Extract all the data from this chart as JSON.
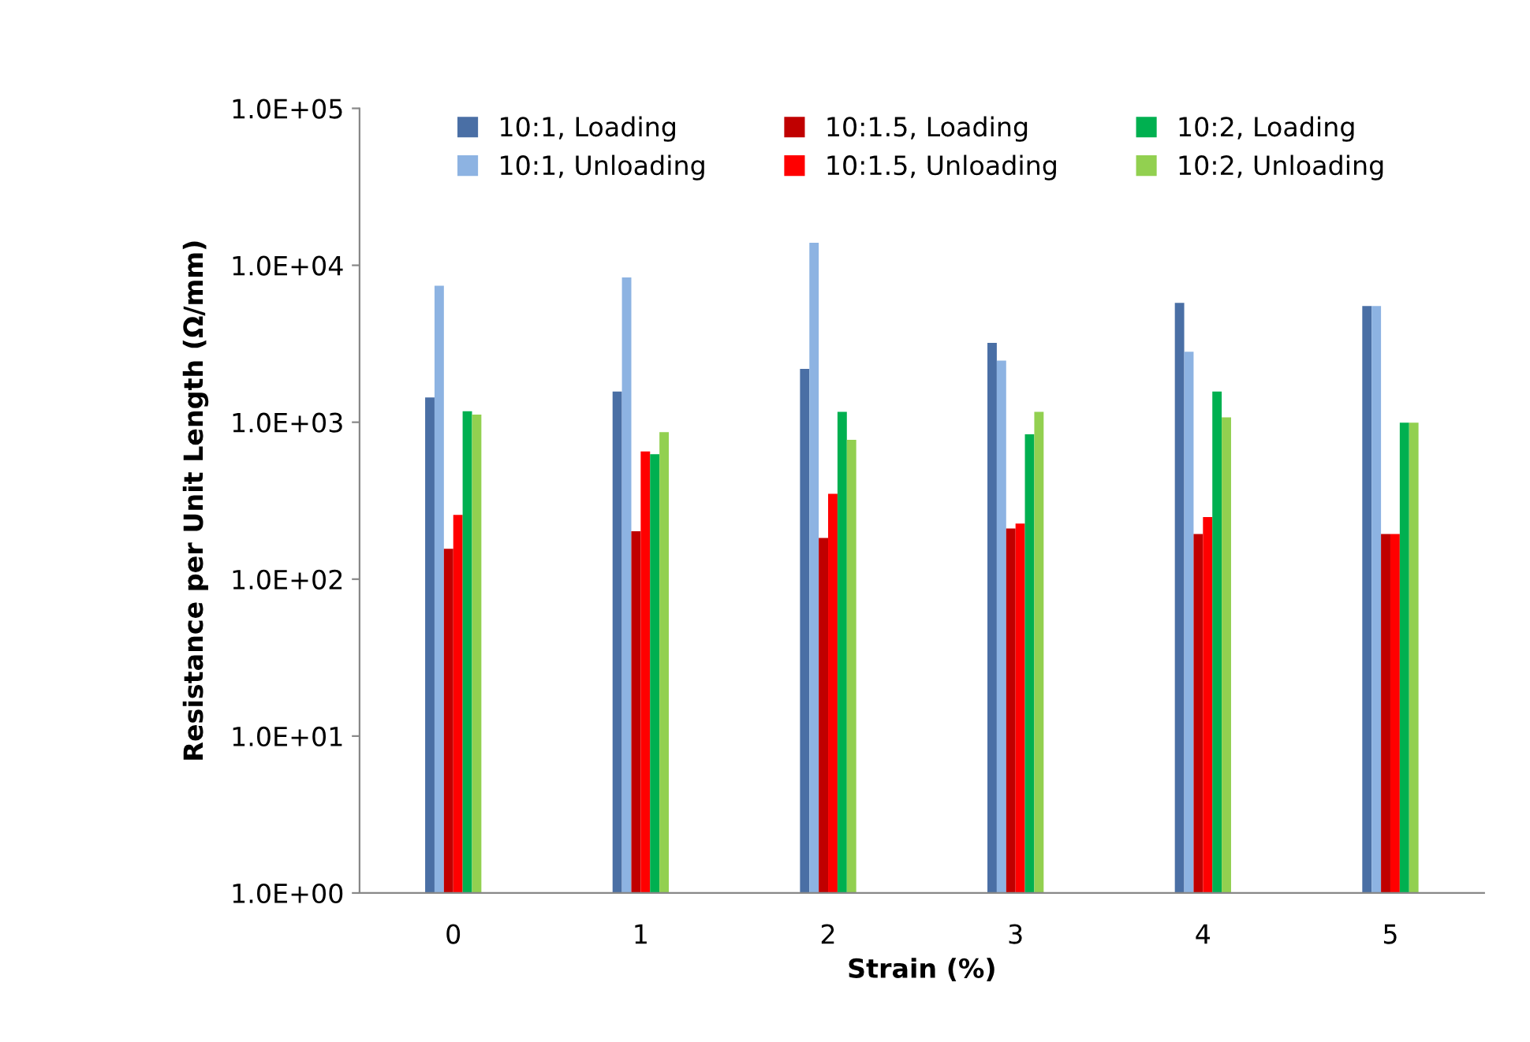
{
  "chart_data": {
    "type": "bar",
    "xlabel": "Strain (%)",
    "ylabel": "Resistance per Unit Length (Ω/mm)",
    "categories": [
      "0",
      "1",
      "2",
      "3",
      "4",
      "5"
    ],
    "series": [
      {
        "name": "10:1, Loading",
        "color": "#4a6fa5",
        "values": [
          1440,
          1570,
          2190,
          3200,
          5770,
          5500
        ]
      },
      {
        "name": "10:1, Unloading",
        "color": "#8db3e2",
        "values": [
          7400,
          8370,
          13900,
          2470,
          2810,
          5500
        ]
      },
      {
        "name": "10:1.5, Loading",
        "color": "#c00000",
        "values": [
          156,
          202,
          183,
          210,
          194,
          194
        ]
      },
      {
        "name": "10:1.5, Unloading",
        "color": "#ff0000",
        "values": [
          257,
          652,
          350,
          226,
          249,
          194
        ]
      },
      {
        "name": "10:2, Loading",
        "color": "#00b050",
        "values": [
          1175,
          626,
          1166,
          837,
          1570,
          993
        ]
      },
      {
        "name": "10:2, Unloading",
        "color": "#92d050",
        "values": [
          1120,
          865,
          772,
          1166,
          1075,
          993
        ]
      }
    ],
    "log": "y",
    "ylim": [
      1,
      100000
    ],
    "yticks": [
      {
        "value": 1,
        "label": "1.0E+00"
      },
      {
        "value": 10,
        "label": "1.0E+01"
      },
      {
        "value": 100,
        "label": "1.0E+02"
      },
      {
        "value": 1000,
        "label": "1.0E+03"
      },
      {
        "value": 10000,
        "label": "1.0E+04"
      },
      {
        "value": 100000,
        "label": "1.0E+05"
      }
    ],
    "grid": false,
    "legend": "top"
  }
}
